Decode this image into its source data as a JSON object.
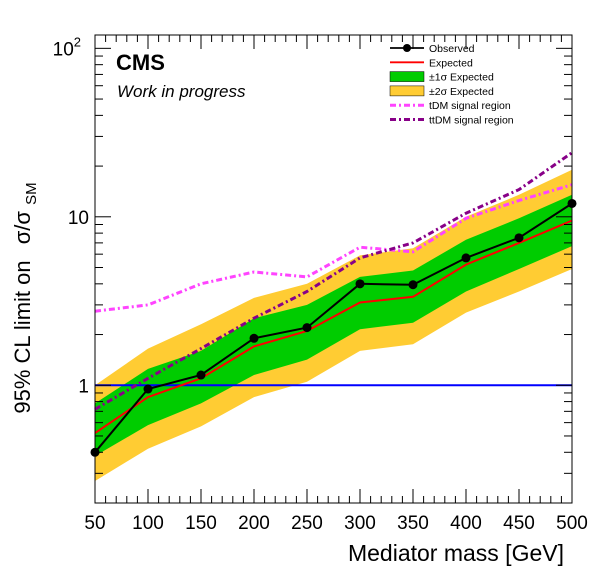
{
  "chart_data": {
    "type": "line",
    "title": "",
    "experiment_label": "CMS",
    "status_label": "Work in progress",
    "xlabel": "Mediator mass [GeV]",
    "ylabel_prefix": "95% CL limit on",
    "ylabel_sigma": "σ/σ",
    "ylabel_subscript": "SM",
    "xlim": [
      50,
      500
    ],
    "ylim": [
      0.2,
      120
    ],
    "y_scale": "log",
    "grid": false,
    "x_ticks": [
      50,
      100,
      150,
      200,
      250,
      300,
      350,
      400,
      450,
      500
    ],
    "y_tick_labels": [
      {
        "value": 1,
        "label": "1"
      },
      {
        "value": 10,
        "label": "10"
      },
      {
        "value": 100,
        "label": "10",
        "exponent": "2"
      }
    ],
    "legend_position": "top-right",
    "reference_line": {
      "y": 1,
      "color": "#0000ff"
    },
    "x": [
      50,
      100,
      150,
      200,
      250,
      300,
      350,
      400,
      450,
      500
    ],
    "series": [
      {
        "name": "Observed",
        "kind": "line-markers",
        "color": "#000000",
        "values": [
          0.4,
          0.95,
          1.15,
          1.9,
          2.2,
          4.0,
          3.95,
          5.7,
          7.5,
          12.0
        ]
      },
      {
        "name": "Expected",
        "kind": "line",
        "color": "#ff0000",
        "values": [
          0.52,
          0.85,
          1.1,
          1.7,
          2.1,
          3.1,
          3.35,
          5.2,
          7.0,
          9.5
        ]
      },
      {
        "name": "±1σ Expected",
        "kind": "band",
        "color": "#00cc00",
        "low": [
          0.38,
          0.58,
          0.78,
          1.15,
          1.42,
          2.15,
          2.35,
          3.6,
          4.9,
          6.7
        ],
        "high": [
          0.78,
          1.25,
          1.6,
          2.5,
          3.0,
          4.4,
          4.8,
          7.3,
          9.8,
          13.5
        ]
      },
      {
        "name": "±2σ Expected",
        "kind": "band",
        "color": "#ffcc33",
        "low": [
          0.27,
          0.42,
          0.57,
          0.85,
          1.05,
          1.6,
          1.75,
          2.7,
          3.6,
          4.9
        ],
        "high": [
          1.0,
          1.65,
          2.3,
          3.3,
          4.0,
          5.9,
          6.5,
          10.0,
          13.5,
          19.0
        ]
      },
      {
        "name": "tDM signal region",
        "kind": "dashdot",
        "color": "#ff44ff",
        "values": [
          2.75,
          3.0,
          4.0,
          4.7,
          4.4,
          6.6,
          6.2,
          9.8,
          12.5,
          15.5
        ]
      },
      {
        "name": "ttDM signal region",
        "kind": "dashdot",
        "color": "#880088",
        "values": [
          0.72,
          1.1,
          1.65,
          2.5,
          3.6,
          5.7,
          7.0,
          10.5,
          14.5,
          24.0
        ]
      }
    ]
  }
}
